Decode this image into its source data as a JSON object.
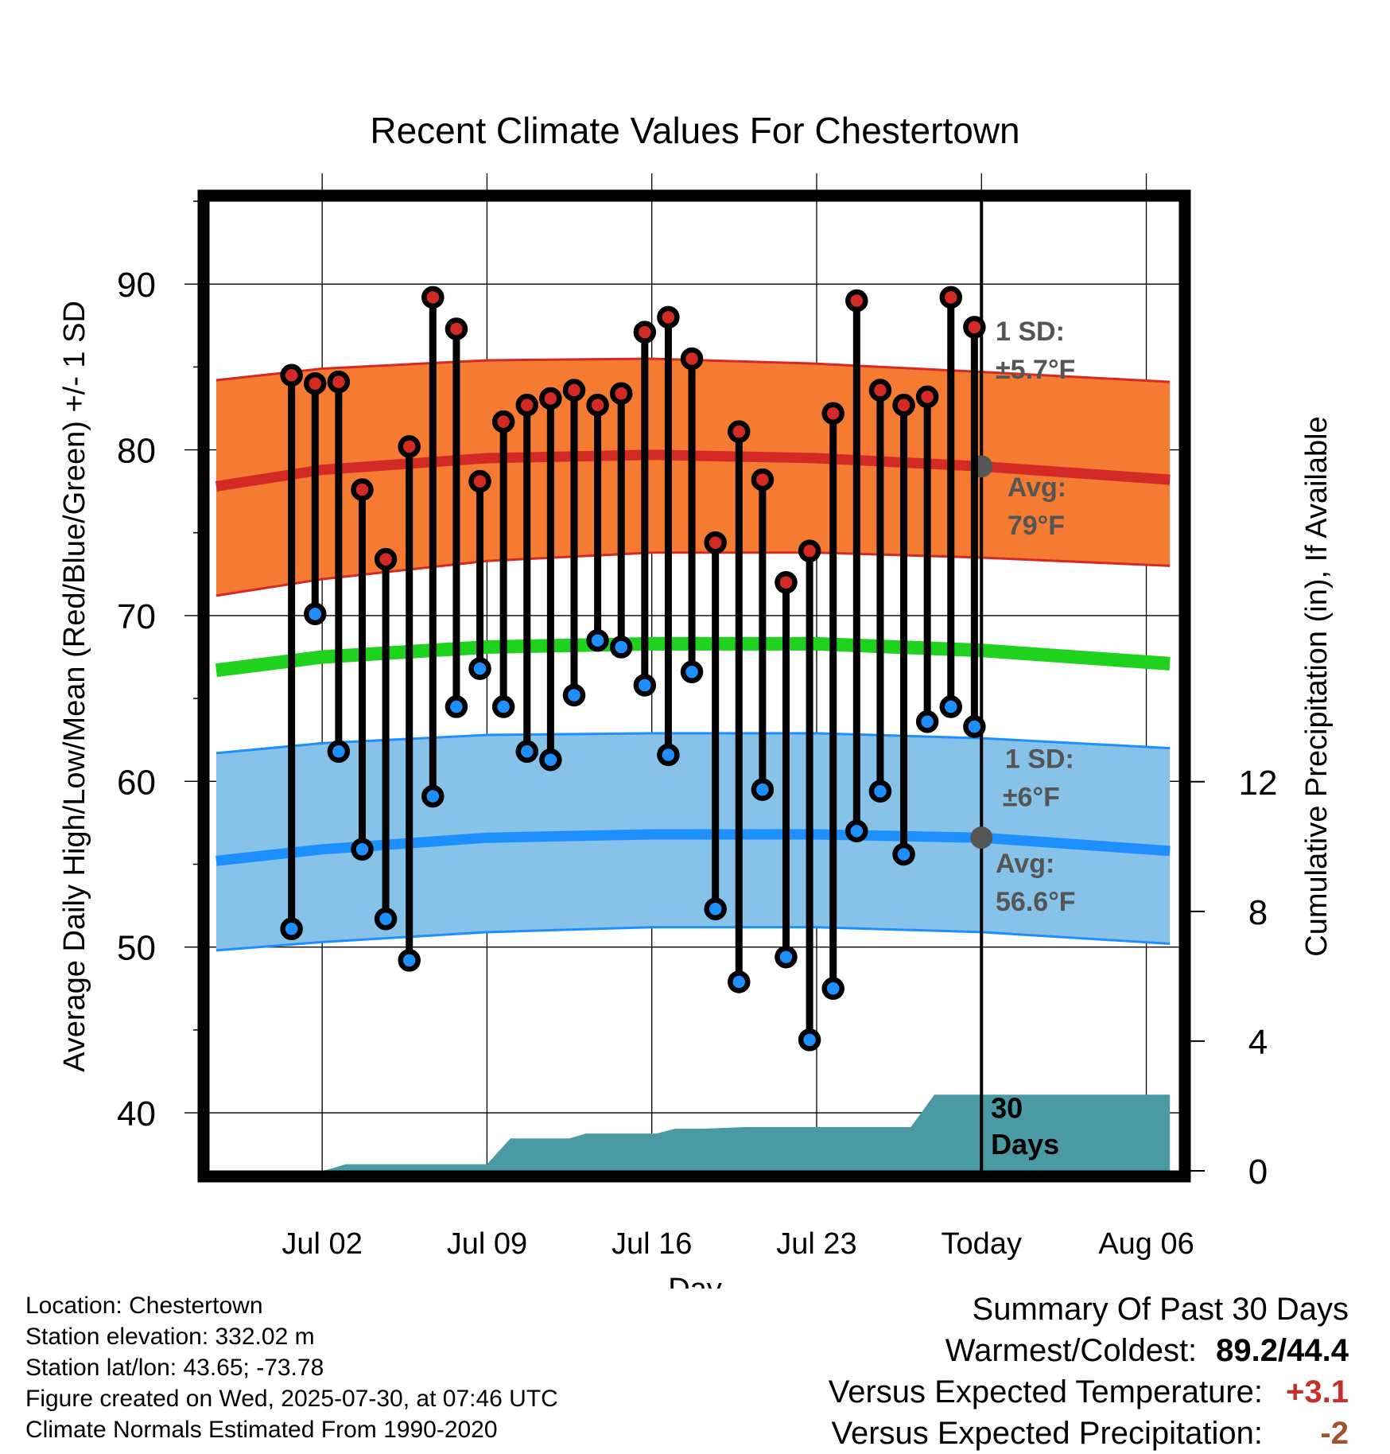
{
  "chart_data": {
    "type": "line",
    "title": "Recent Climate Values For Chestertown",
    "xlabel": "Day",
    "ylabel": "Average Daily High/Low/Mean (Red/Blue/Green) +/- 1 SD",
    "y2label": "Cumulative Precipitation (in), If Available",
    "ylim": [
      36.5,
      95
    ],
    "y_ticks": [
      40,
      50,
      60,
      70,
      80,
      90
    ],
    "y2lim": [
      0,
      29.9
    ],
    "y2_ticks": [
      0,
      4,
      8,
      12
    ],
    "xlim": [
      -2.8,
      38.4
    ],
    "x_tick_positions": [
      2,
      9,
      16,
      23,
      30,
      37
    ],
    "x_tick_labels": [
      "Jul 02",
      "Jul 09",
      "Jul 16",
      "Jul 23",
      "Today",
      "Aug 06"
    ],
    "today_x": 30,
    "grid": true,
    "colors": {
      "high": "#d42a26",
      "high_band": "#f47b31",
      "low": "#1e8fff",
      "low_band": "#87c2e8",
      "mean": "#1ed21e",
      "precip": "#4a9aa3",
      "annotation": "#555555"
    },
    "days": [
      0.7,
      1.7,
      2.7,
      3.7,
      4.7,
      5.7,
      6.7,
      7.7,
      8.7,
      9.7,
      10.7,
      11.7,
      12.7,
      13.7,
      14.7,
      15.7,
      16.7,
      17.7,
      18.7,
      19.7,
      20.7,
      21.7,
      22.7,
      23.7,
      24.7,
      25.7,
      26.7,
      27.7,
      28.7,
      29.7
    ],
    "series": [
      {
        "name": "High",
        "values": [
          84.5,
          84.0,
          84.1,
          77.6,
          73.4,
          80.2,
          89.2,
          87.3,
          78.1,
          81.7,
          82.7,
          83.1,
          83.6,
          82.7,
          83.4,
          87.1,
          88.0,
          85.5,
          74.4,
          81.1,
          78.2,
          72.0,
          73.9,
          82.2,
          89.0,
          83.6,
          82.7,
          83.2,
          89.2,
          87.4
        ]
      },
      {
        "name": "Low",
        "values": [
          51.1,
          70.1,
          61.8,
          55.9,
          51.7,
          49.2,
          59.1,
          64.5,
          66.8,
          64.5,
          61.8,
          61.3,
          65.2,
          68.5,
          68.1,
          65.8,
          61.6,
          66.6,
          52.3,
          47.9,
          59.5,
          49.4,
          44.4,
          47.5,
          57.0,
          59.4,
          55.6,
          63.6,
          64.5,
          63.3
        ]
      }
    ],
    "normals": {
      "x": [
        -2.5,
        2,
        9,
        16,
        23,
        30,
        38
      ],
      "high_avg": [
        77.8,
        78.8,
        79.5,
        79.7,
        79.5,
        79.0,
        78.2
      ],
      "high_sd_upper": [
        84.2,
        84.9,
        85.4,
        85.5,
        85.2,
        84.7,
        84.1
      ],
      "high_sd_lower": [
        71.2,
        72.2,
        73.3,
        73.8,
        73.8,
        73.5,
        73.0
      ],
      "mean": [
        66.7,
        67.5,
        68.1,
        68.3,
        68.3,
        67.9,
        67.1
      ],
      "low_avg": [
        55.2,
        55.9,
        56.6,
        56.8,
        56.8,
        56.6,
        55.8
      ],
      "low_sd_upper": [
        61.7,
        62.3,
        62.8,
        62.9,
        62.9,
        62.6,
        62.0
      ],
      "low_sd_lower": [
        49.8,
        50.3,
        50.9,
        51.2,
        51.2,
        50.9,
        50.2
      ]
    },
    "precip_cumulative": {
      "x": [
        -2.5,
        2.0,
        2.3,
        3.0,
        8.5,
        9.0,
        10.0,
        11.2,
        12.5,
        13.2,
        15.0,
        16.2,
        17.0,
        18.2,
        20.0,
        21.0,
        23.0,
        25.0,
        27.0,
        27.5,
        28.0,
        30.0,
        38.0
      ],
      "values": [
        0,
        0,
        0.05,
        0.2,
        0.2,
        0.2,
        1.0,
        1.0,
        1.0,
        1.15,
        1.15,
        1.15,
        1.3,
        1.3,
        1.35,
        1.35,
        1.35,
        1.35,
        1.35,
        1.85,
        2.35,
        2.35,
        2.35
      ]
    },
    "annotations": {
      "high_sd_label": "1 SD:",
      "high_sd_value": "±5.7°F",
      "high_avg_label": "Avg:",
      "high_avg_value": "79°F",
      "high_avg_marker": 79.0,
      "low_sd_label": "1 SD:",
      "low_sd_value": "±6°F",
      "low_avg_label": "Avg:",
      "low_avg_value": "56.6°F",
      "low_avg_marker": 56.6,
      "days_count": "30",
      "days_word": "Days"
    }
  },
  "footer": {
    "location": "Location: Chestertown",
    "elevation": "Station elevation: 332.02 m",
    "latlon": "Station lat/lon: 43.65; -73.78",
    "created": "Figure created on Wed, 2025-07-30, at 07:46 UTC",
    "normals": "Climate Normals Estimated From 1990-2020"
  },
  "summary": {
    "title": "Summary Of Past 30 Days",
    "warmest_coldest_label": "Warmest/Coldest:",
    "warmest_coldest_value": "89.2/44.4",
    "temp_label": "Versus Expected Temperature:",
    "temp_value": "+3.1",
    "temp_color": "#c62f2a",
    "precip_label": "Versus Expected Precipitation:",
    "precip_value": "-2",
    "precip_color": "#a0522d"
  }
}
